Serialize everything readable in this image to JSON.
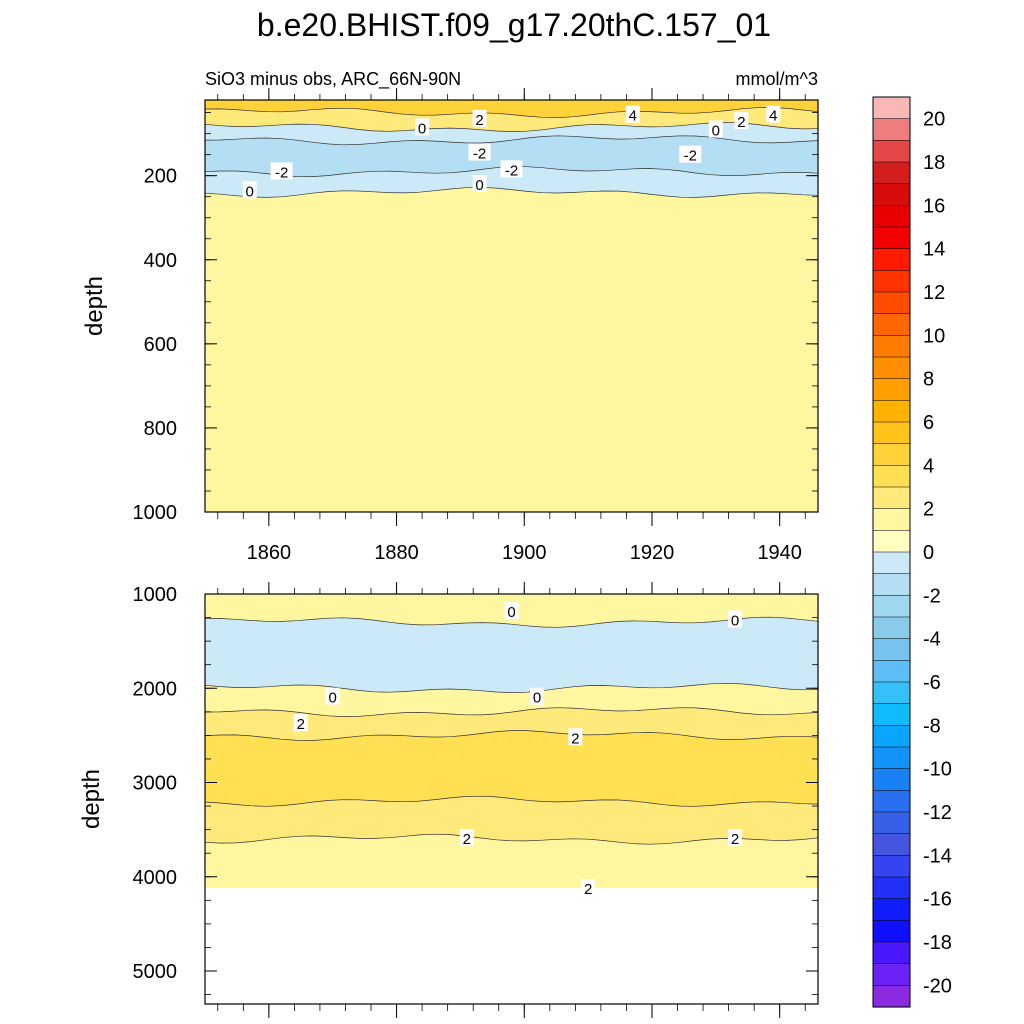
{
  "title": "b.e20.BHIST.f09_g17.20thC.157_01",
  "subtitle_left": "SiO3 minus obs, ARC_66N-90N",
  "subtitle_right": "mmol/m^3",
  "chart_data": [
    {
      "type": "heatmap",
      "panel": "upper",
      "ylabel": "depth",
      "xlim": [
        1850,
        1946
      ],
      "ylim": [
        1000,
        20
      ],
      "x_ticks": [
        1860,
        1880,
        1900,
        1920,
        1940
      ],
      "y_ticks": [
        200,
        400,
        600,
        800,
        1000
      ],
      "bands": [
        {
          "top": 20,
          "bottom": 50,
          "level": 4
        },
        {
          "top": 50,
          "bottom": 85,
          "level": 2
        },
        {
          "top": 85,
          "bottom": 115,
          "level": -1
        },
        {
          "top": 115,
          "bottom": 190,
          "level": -2
        },
        {
          "top": 190,
          "bottom": 240,
          "level": -1
        },
        {
          "top": 240,
          "bottom": 1000,
          "level": 1
        }
      ],
      "contour_labels": [
        {
          "x": 1884,
          "y": 85,
          "text": "0"
        },
        {
          "x": 1893,
          "y": 65,
          "text": "2"
        },
        {
          "x": 1917,
          "y": 55,
          "text": "4"
        },
        {
          "x": 1930,
          "y": 90,
          "text": "0"
        },
        {
          "x": 1934,
          "y": 70,
          "text": "2"
        },
        {
          "x": 1939,
          "y": 55,
          "text": "4"
        },
        {
          "x": 1893,
          "y": 145,
          "text": "-2"
        },
        {
          "x": 1926,
          "y": 150,
          "text": "-2"
        },
        {
          "x": 1862,
          "y": 190,
          "text": "-2"
        },
        {
          "x": 1898,
          "y": 185,
          "text": "-2"
        },
        {
          "x": 1857,
          "y": 235,
          "text": "0"
        },
        {
          "x": 1893,
          "y": 220,
          "text": "0"
        }
      ]
    },
    {
      "type": "heatmap",
      "panel": "lower",
      "ylabel": "depth",
      "xlim": [
        1850,
        1946
      ],
      "ylim": [
        5350,
        1000
      ],
      "y_ticks": [
        1000,
        2000,
        3000,
        4000,
        5000
      ],
      "bands": [
        {
          "top": 1000,
          "bottom": 1300,
          "level": 1
        },
        {
          "top": 1300,
          "bottom": 2000,
          "level": -1
        },
        {
          "top": 2000,
          "bottom": 2250,
          "level": 1
        },
        {
          "top": 2250,
          "bottom": 2500,
          "level": 2
        },
        {
          "top": 2500,
          "bottom": 3200,
          "level": 3
        },
        {
          "top": 3200,
          "bottom": 3600,
          "level": 2
        },
        {
          "top": 3600,
          "bottom": 4120,
          "level": 1
        }
      ],
      "contour_labels": [
        {
          "x": 1898,
          "y": 1180,
          "text": "0"
        },
        {
          "x": 1933,
          "y": 1270,
          "text": "0"
        },
        {
          "x": 1870,
          "y": 2090,
          "text": "0"
        },
        {
          "x": 1902,
          "y": 2090,
          "text": "0"
        },
        {
          "x": 1865,
          "y": 2370,
          "text": "2"
        },
        {
          "x": 1908,
          "y": 2520,
          "text": "2"
        },
        {
          "x": 1891,
          "y": 3590,
          "text": "2"
        },
        {
          "x": 1933,
          "y": 3590,
          "text": "2"
        },
        {
          "x": 1910,
          "y": 4120,
          "text": "2"
        }
      ]
    }
  ],
  "colorbar": {
    "labels": [
      "20",
      "18",
      "16",
      "14",
      "12",
      "10",
      "8",
      "6",
      "4",
      "2",
      "0",
      "-2",
      "-4",
      "-6",
      "-8",
      "-10",
      "-12",
      "-14",
      "-16",
      "-18",
      "-20"
    ],
    "colors": [
      "#f9b7b6",
      "#f07d7d",
      "#e34747",
      "#d41d1d",
      "#d60b0b",
      "#e80000",
      "#f50000",
      "#ff1a00",
      "#ff3300",
      "#ff4d00",
      "#ff6600",
      "#ff7c00",
      "#ff8f00",
      "#ffa000",
      "#ffb200",
      "#ffc31a",
      "#ffd23a",
      "#ffe052",
      "#ffe97a",
      "#fff6a0",
      "#ffffc0",
      "#cce9f7",
      "#b3def3",
      "#9fd6f0",
      "#8acbea",
      "#75c3ee",
      "#5ebdf4",
      "#36c0f9",
      "#10bbfd",
      "#08a6ff",
      "#1193fa",
      "#1a80f5",
      "#2870f0",
      "#3860e6",
      "#4455e0",
      "#3344f0",
      "#2030f6",
      "#0f1dfc",
      "#1010ff",
      "#4a17ff",
      "#6b22f5",
      "#8a2be2"
    ]
  }
}
